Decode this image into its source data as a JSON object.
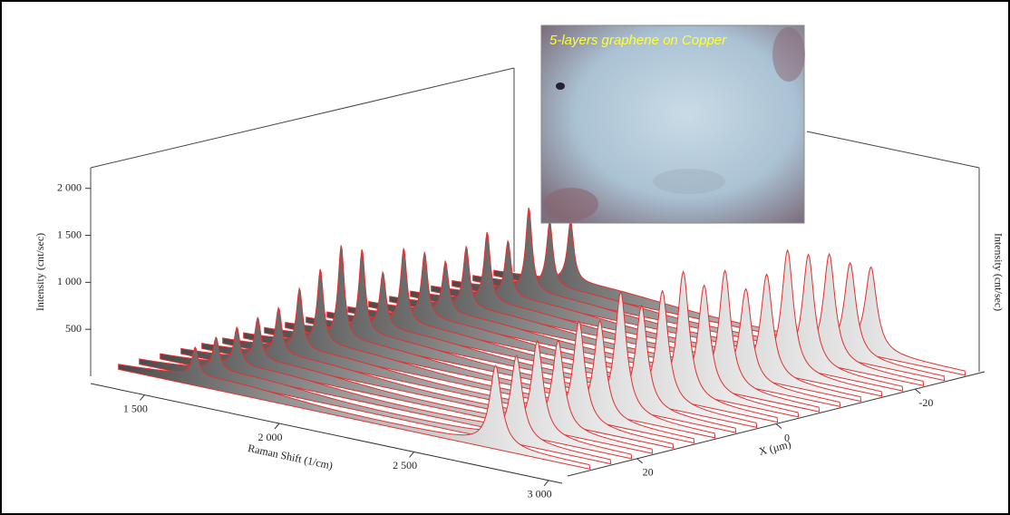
{
  "chart_data": {
    "type": "waterfall3d",
    "inset_title": "5-layers graphene on Copper",
    "y_label": "Intensity (cnt/sec)",
    "y2_label": "Intensity (cnt/sec)",
    "r_label": "Raman Shift (1/cm)",
    "x_label": "X (µm)",
    "categories": [
      1585,
      2700
    ],
    "rlim": [
      1300,
      3050
    ],
    "rticks": [
      {
        "value": 1500,
        "label": "1 500"
      },
      {
        "value": 2000,
        "label": "2 000"
      },
      {
        "value": 2500,
        "label": "2 500"
      },
      {
        "value": 3000,
        "label": "3 000"
      }
    ],
    "xlim": [
      30,
      -30
    ],
    "xticks": [
      20,
      0,
      -20
    ],
    "ylim": [
      0,
      2200
    ],
    "yticks": [
      {
        "value": 500,
        "label": "500"
      },
      {
        "value": 1000,
        "label": "1 000"
      },
      {
        "value": 1500,
        "label": "1 500"
      },
      {
        "value": 2000,
        "label": "2 000"
      }
    ],
    "rows": [
      {
        "x": -28,
        "values": [
          650,
          900
        ]
      },
      {
        "x": -25,
        "values": [
          700,
          1000
        ]
      },
      {
        "x": -22,
        "values": [
          900,
          1150
        ]
      },
      {
        "x": -19,
        "values": [
          600,
          1200
        ]
      },
      {
        "x": -16,
        "values": [
          750,
          1300
        ]
      },
      {
        "x": -13,
        "values": [
          650,
          1100
        ]
      },
      {
        "x": -10,
        "values": [
          550,
          1000
        ]
      },
      {
        "x": -7,
        "values": [
          700,
          1250
        ]
      },
      {
        "x": -4,
        "values": [
          800,
          1150
        ]
      },
      {
        "x": -1,
        "values": [
          600,
          1350
        ]
      },
      {
        "x": 2,
        "values": [
          900,
          1200
        ]
      },
      {
        "x": 5,
        "values": [
          1000,
          1100
        ]
      },
      {
        "x": 8,
        "values": [
          800,
          1300
        ]
      },
      {
        "x": 11,
        "values": [
          650,
          1050
        ]
      },
      {
        "x": 14,
        "values": [
          500,
          1100
        ]
      },
      {
        "x": 17,
        "values": [
          450,
          950
        ]
      },
      {
        "x": 20,
        "values": [
          400,
          1000
        ]
      },
      {
        "x": 23,
        "values": [
          350,
          900
        ]
      },
      {
        "x": 26,
        "values": [
          300,
          850
        ]
      }
    ]
  }
}
